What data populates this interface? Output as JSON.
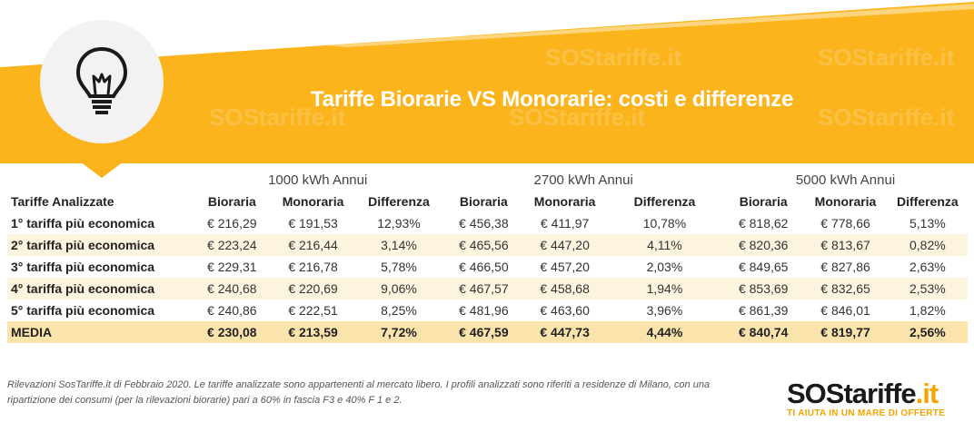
{
  "header": {
    "title": "Tariffe Biorarie VS Monorarie: costi e differenze",
    "bulb_icon": "lightbulb-icon"
  },
  "table": {
    "groups": [
      "1000 kWh Annui",
      "2700 kWh Annui",
      "5000 kWh Annui"
    ],
    "row_header": "Tariffe Analizzate",
    "columns": [
      "Bioraria",
      "Monoraria",
      "Differenza"
    ],
    "rows": [
      {
        "name": "1° tariffa più economica",
        "cells": [
          "€ 216,29",
          "€ 191,53",
          "12,93%",
          "€ 456,38",
          "€ 411,97",
          "10,78%",
          "€ 818,62",
          "€ 778,66",
          "5,13%"
        ]
      },
      {
        "name": "2° tariffa più economica",
        "cells": [
          "€ 223,24",
          "€ 216,44",
          "3,14%",
          "€ 465,56",
          "€ 447,20",
          "4,11%",
          "€ 820,36",
          "€ 813,67",
          "0,82%"
        ]
      },
      {
        "name": "3° tariffa più economica",
        "cells": [
          "€ 229,31",
          "€ 216,78",
          "5,78%",
          "€ 466,50",
          "€ 457,20",
          "2,03%",
          "€ 849,65",
          "€ 827,86",
          "2,63%"
        ]
      },
      {
        "name": "4° tariffa più economica",
        "cells": [
          "€ 240,68",
          "€ 220,69",
          "9,06%",
          "€ 467,57",
          "€ 458,68",
          "1,94%",
          "€ 853,69",
          "€ 832,65",
          "2,53%"
        ]
      },
      {
        "name": "5° tariffa più economica",
        "cells": [
          "€ 240,86",
          "€ 222,51",
          "8,25%",
          "€ 481,96",
          "€ 463,60",
          "3,96%",
          "€ 861,39",
          "€ 846,01",
          "1,82%"
        ]
      }
    ],
    "average": {
      "name": "MEDIA",
      "cells": [
        "€ 230,08",
        "€ 213,59",
        "7,72%",
        "€ 467,59",
        "€ 447,73",
        "4,44%",
        "€ 840,74",
        "€ 819,77",
        "2,56%"
      ]
    }
  },
  "footnote": "Rilevazioni SosTariffe.it di Febbraio 2020. Le tariffe analizzate sono appartenenti al mercato libero. I profili analizzati sono riferiti a residenze di Milano, con una ripartizione dei consumi (per la rilevazioni biorarie) pari a 60% in fascia F3 e 40% F 1 e 2.",
  "logo": {
    "brand": "SOStariffe",
    "tld": ".it",
    "tagline": "TI AIUTA IN UN MARE DI OFFERTE"
  },
  "watermark": "SOStariffe.it",
  "colors": {
    "orange": "#fbb41c",
    "light_row": "#fdf4e0",
    "average_row": "#fbe3ac",
    "brand_accent": "#f5a500"
  }
}
